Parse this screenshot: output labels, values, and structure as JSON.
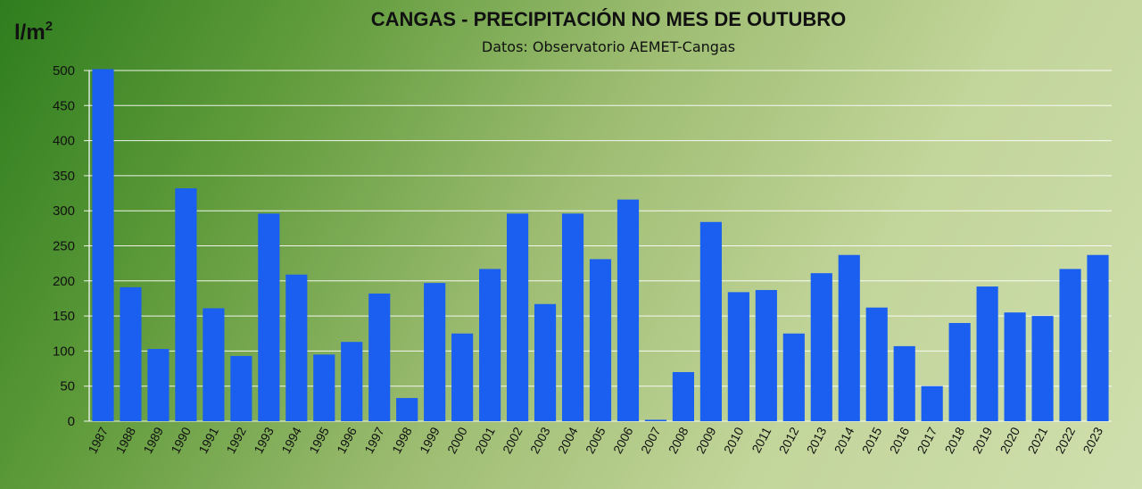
{
  "chart_data": {
    "type": "bar",
    "title": "CANGAS - PRECIPITACIÓN NO MES DE OUTUBRO",
    "subtitle": "Datos: Observatorio AEMET-Cangas",
    "ylabel": "l/m",
    "ylabel_superscript": "2",
    "xlabel": "",
    "ylim": [
      0,
      500
    ],
    "yticks": [
      0,
      50,
      100,
      150,
      200,
      250,
      300,
      350,
      400,
      450,
      500
    ],
    "grid": true,
    "bar_color": "#1a5ff0",
    "categories": [
      "1987",
      "1988",
      "1989",
      "1990",
      "1991",
      "1992",
      "1993",
      "1994",
      "1995",
      "1996",
      "1997",
      "1998",
      "1999",
      "2000",
      "2001",
      "2002",
      "2003",
      "2004",
      "2005",
      "2006",
      "2007",
      "2008",
      "2009",
      "2010",
      "2011",
      "2012",
      "2013",
      "2014",
      "2015",
      "2016",
      "2017",
      "2018",
      "2019",
      "2020",
      "2021",
      "2022",
      "2023"
    ],
    "values": [
      502,
      191,
      103,
      332,
      161,
      93,
      296,
      209,
      95,
      113,
      182,
      33,
      197,
      125,
      217,
      296,
      167,
      296,
      231,
      316,
      2,
      70,
      284,
      184,
      187,
      125,
      211,
      237,
      162,
      107,
      50,
      140,
      192,
      155,
      150,
      217,
      237
    ]
  }
}
